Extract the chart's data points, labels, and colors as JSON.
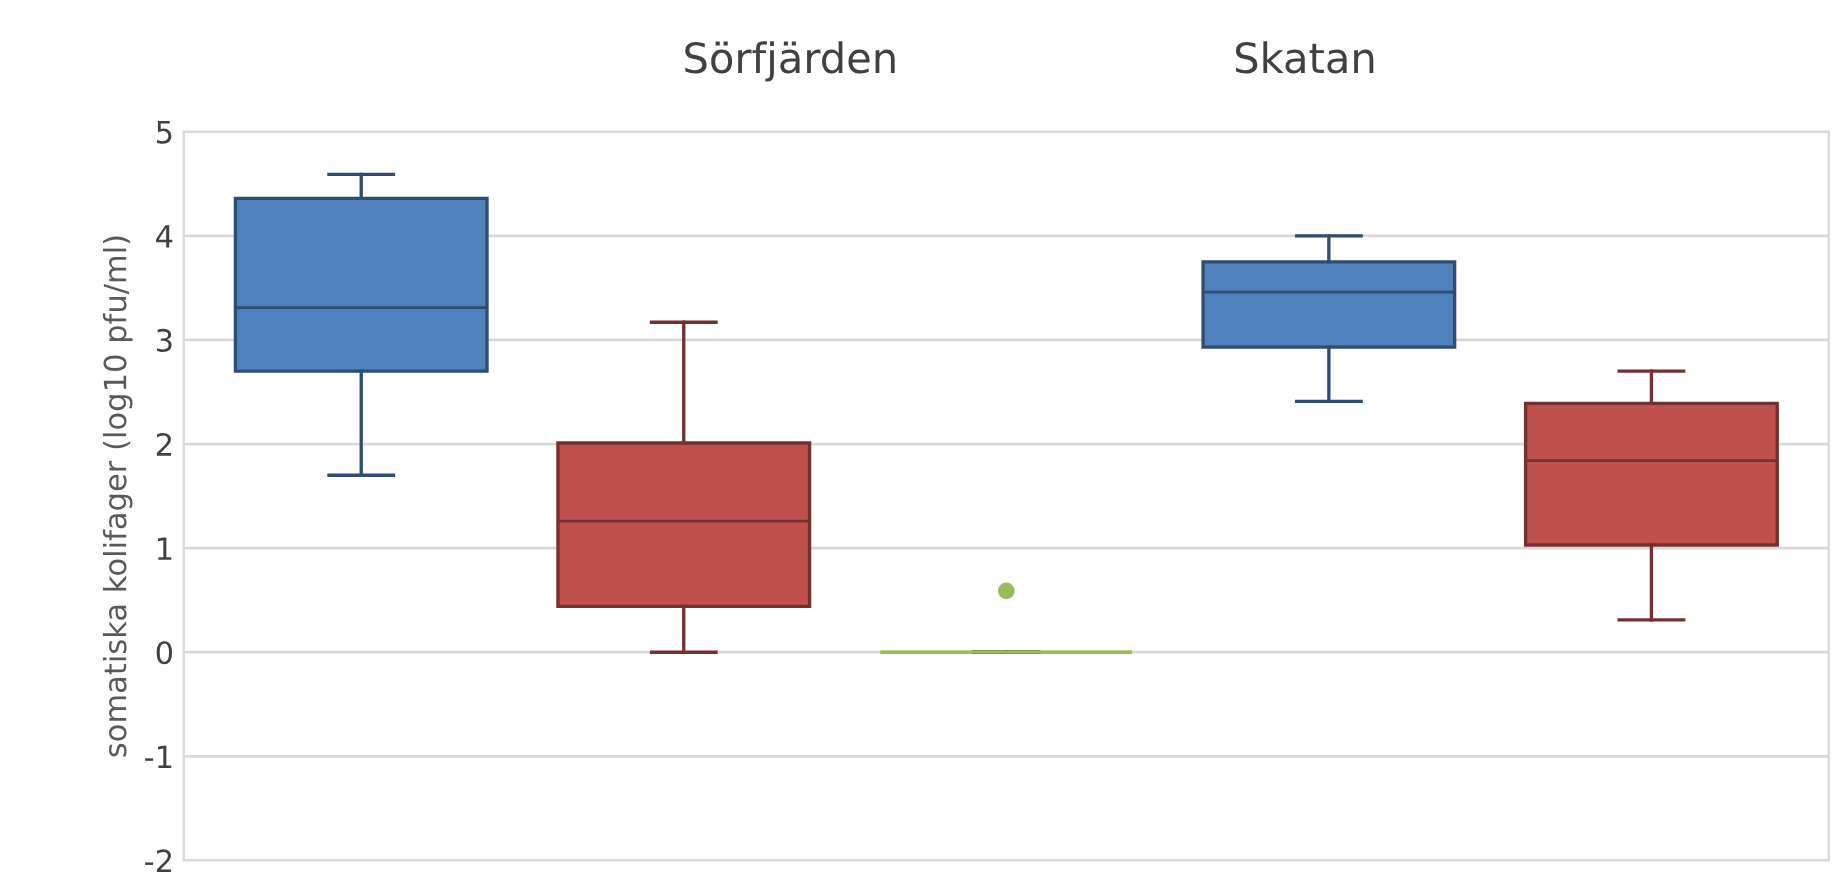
{
  "chart_data": {
    "type": "box",
    "ylabel": "somatiska kolifager (log10 pfu/ml)",
    "annotations": [
      "Sörfjärden",
      "Skatan"
    ],
    "categories": [
      null,
      null,
      null,
      null,
      null
    ],
    "colors": [
      "#4f81bd",
      "#c0504d",
      "#9bbb59",
      "#4f81bd",
      "#c0504d"
    ],
    "boxes": [
      {
        "low": 1.7,
        "q1": 2.7,
        "median": 3.31,
        "q3": 4.36,
        "high": 4.59
      },
      {
        "low": 0,
        "q1": 0.44,
        "median": 1.26,
        "q3": 2.01,
        "high": 3.17
      },
      {
        "low": 0,
        "q1": 0,
        "median": 0,
        "q3": 0,
        "high": 0,
        "outliers": [
          0.59
        ]
      },
      {
        "low": 2.41,
        "q1": 2.93,
        "median": 3.46,
        "q3": 3.75,
        "high": 4.0
      },
      {
        "low": 0.31,
        "q1": 1.03,
        "median": 1.84,
        "q3": 2.39,
        "high": 2.7
      }
    ],
    "ylim": [
      -2,
      5
    ],
    "yticks": [
      -2,
      -1,
      0,
      1,
      2,
      3,
      4,
      5
    ],
    "grid": "y"
  }
}
